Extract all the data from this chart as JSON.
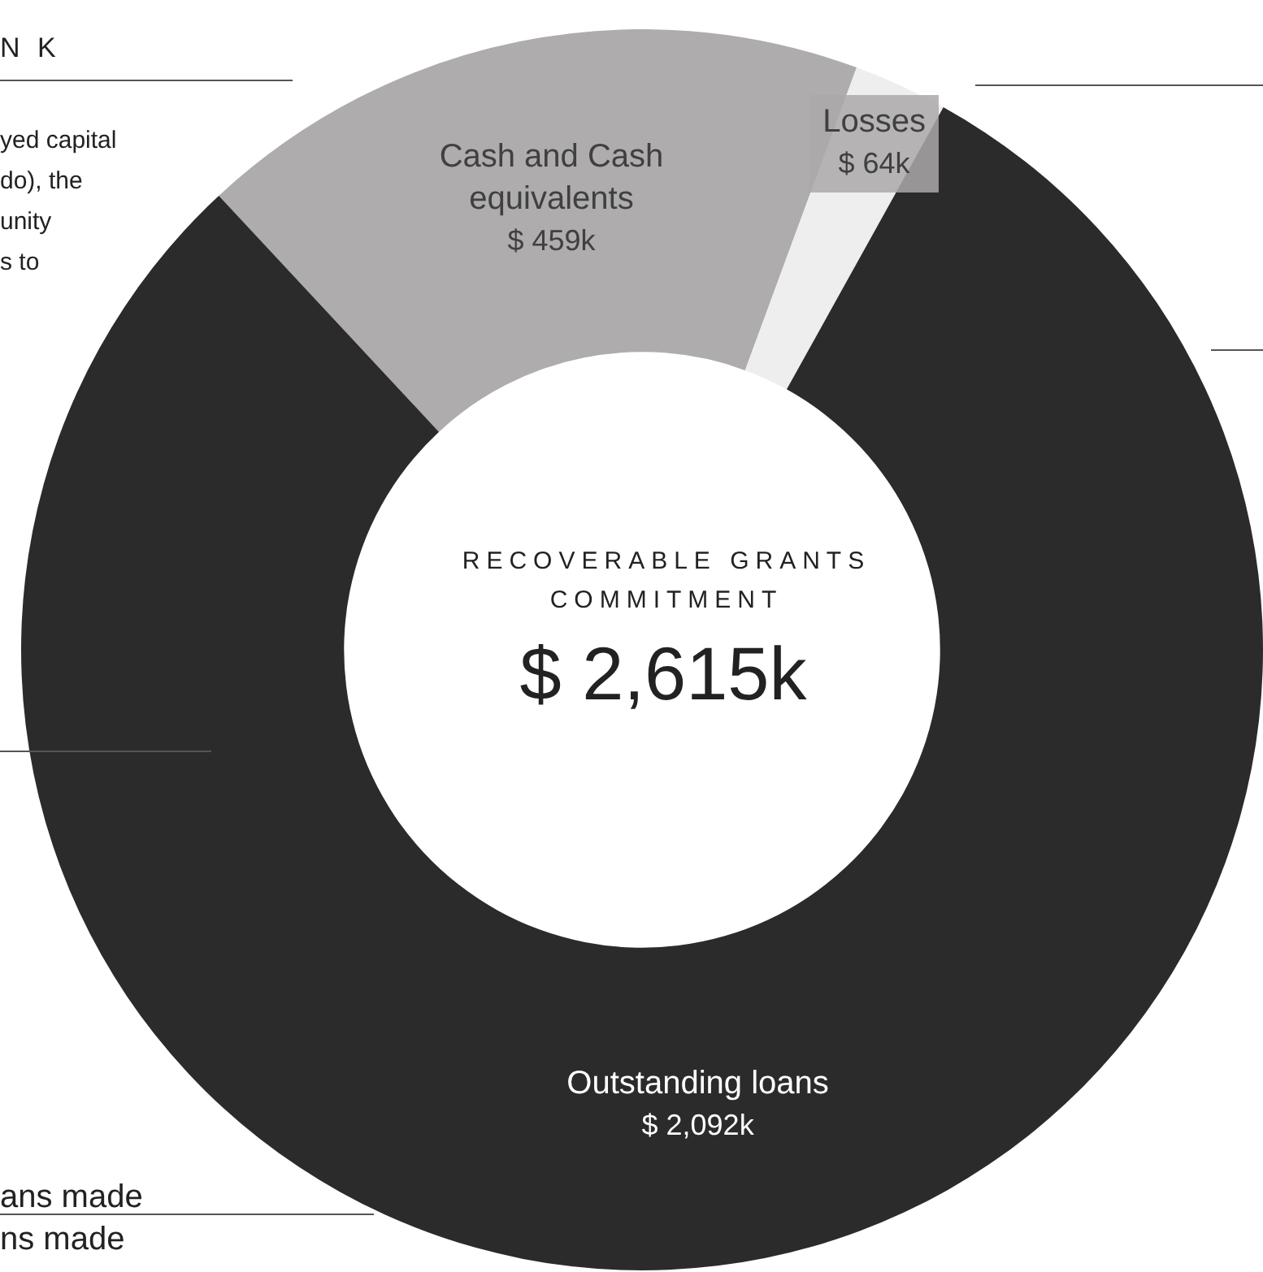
{
  "chart_data": {
    "type": "donut",
    "title": "RECOVERABLE GRANTS COMMITMENT",
    "categories": [
      "Cash and Cash equivalents",
      "Losses",
      "Outstanding loans"
    ],
    "values": [
      459,
      64,
      2092
    ],
    "colors": [
      "#aeacac",
      "#eeeeee",
      "#2b2b2b"
    ],
    "value_labels": [
      "$ 459k",
      "$ 64k",
      "$ 2,092k"
    ],
    "legend": false,
    "annotations": [
      "$ 2,615k",
      "N K",
      "yed capital",
      "do), the",
      "unity",
      "s to",
      "ans made",
      "ns made"
    ]
  }
}
